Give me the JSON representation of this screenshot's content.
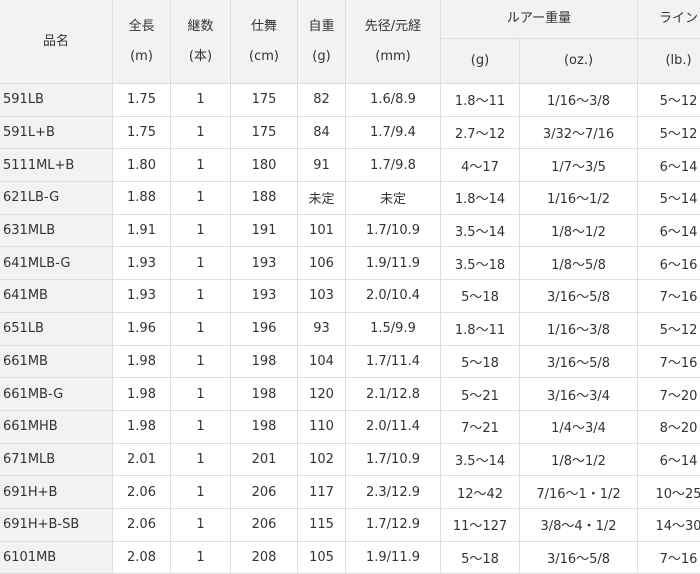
{
  "headers": {
    "name": "品名",
    "length": {
      "label": "全長",
      "unit": "(m)"
    },
    "pieces": {
      "label": "継数",
      "unit": "(本)"
    },
    "closed": {
      "label": "仕舞",
      "unit": "(cm)"
    },
    "weight": {
      "label": "自重",
      "unit": "(g)"
    },
    "diameter": {
      "label": "先径/元経",
      "unit": "(mm)"
    },
    "lure": {
      "label": "ルアー重量",
      "unit_g": "(g)",
      "unit_oz": "(oz.)"
    },
    "line": {
      "label": "ライン",
      "unit": "(lb.)"
    }
  },
  "rows": [
    [
      "591LB",
      "1.75",
      "1",
      "175",
      "82",
      "1.6/8.9",
      "1.8〜11",
      "1/16〜3/8",
      "5〜12"
    ],
    [
      "591L+B",
      "1.75",
      "1",
      "175",
      "84",
      "1.7/9.4",
      "2.7〜12",
      "3/32〜7/16",
      "5〜12"
    ],
    [
      "5111ML+B",
      "1.80",
      "1",
      "180",
      "91",
      "1.7/9.8",
      "4〜17",
      "1/7〜3/5",
      "6〜14"
    ],
    [
      "621LB-G",
      "1.88",
      "1",
      "188",
      "未定",
      "未定",
      "1.8〜14",
      "1/16〜1/2",
      "5〜14"
    ],
    [
      "631MLB",
      "1.91",
      "1",
      "191",
      "101",
      "1.7/10.9",
      "3.5〜14",
      "1/8〜1/2",
      "6〜14"
    ],
    [
      "641MLB-G",
      "1.93",
      "1",
      "193",
      "106",
      "1.9/11.9",
      "3.5〜18",
      "1/8〜5/8",
      "6〜16"
    ],
    [
      "641MB",
      "1.93",
      "1",
      "193",
      "103",
      "2.0/10.4",
      "5〜18",
      "3/16〜5/8",
      "7〜16"
    ],
    [
      "651LB",
      "1.96",
      "1",
      "196",
      "93",
      "1.5/9.9",
      "1.8〜11",
      "1/16〜3/8",
      "5〜12"
    ],
    [
      "661MB",
      "1.98",
      "1",
      "198",
      "104",
      "1.7/11.4",
      "5〜18",
      "3/16〜5/8",
      "7〜16"
    ],
    [
      "661MB-G",
      "1.98",
      "1",
      "198",
      "120",
      "2.1/12.8",
      "5〜21",
      "3/16〜3/4",
      "7〜20"
    ],
    [
      "661MHB",
      "1.98",
      "1",
      "198",
      "110",
      "2.0/11.4",
      "7〜21",
      "1/4〜3/4",
      "8〜20"
    ],
    [
      "671MLB",
      "2.01",
      "1",
      "201",
      "102",
      "1.7/10.9",
      "3.5〜14",
      "1/8〜1/2",
      "6〜14"
    ],
    [
      "691H+B",
      "2.06",
      "1",
      "206",
      "117",
      "2.3/12.9",
      "12〜42",
      "7/16〜1・1/2",
      "10〜25"
    ],
    [
      "691H+B-SB",
      "2.06",
      "1",
      "206",
      "115",
      "1.7/12.9",
      "11〜127",
      "3/8〜4・1/2",
      "14〜30"
    ],
    [
      "6101MB",
      "2.08",
      "1",
      "208",
      "105",
      "1.9/11.9",
      "5〜18",
      "3/16〜5/8",
      "7〜16"
    ]
  ]
}
